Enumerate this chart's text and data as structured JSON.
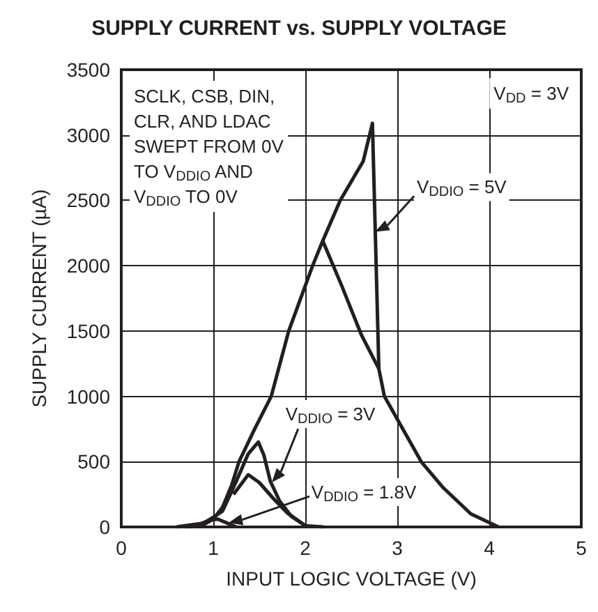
{
  "chart_data": {
    "type": "line",
    "title": "SUPPLY CURRENT vs. SUPPLY VOLTAGE",
    "xlabel": "INPUT LOGIC VOLTAGE (V)",
    "ylabel": "SUPPLY CURRENT (µA)",
    "xlim": [
      0,
      5
    ],
    "xticks": [
      0,
      1,
      2,
      3,
      4,
      5
    ],
    "ylim": [
      0,
      3500
    ],
    "yticks": [
      0,
      500,
      1000,
      1500,
      2000,
      2500,
      3000,
      3500
    ],
    "grid": true,
    "marker": "none",
    "line_style": "solid",
    "annotations": [
      "V$_{DD}$ = 3V",
      "SCLK, CSB, DIN,\nCLR, AND LDAC\nSWEPT FROM 0V\nTO V$_{DDIO}$ AND\nV$_{DDIO}$ TO 0V",
      {
        "text": "V$_{DDIO}$ = 5V",
        "x": 2.76,
        "y": 2260
      },
      "V$_{DDIO}$ = 3V",
      "V$_{DDIO}$ = 1.8V"
    ],
    "series": [
      {
        "color": "#231f20",
        "x": [
          0.7,
          0.9,
          1.0,
          1.1,
          1.2,
          1.28,
          1.45,
          1.63,
          1.82,
          2.08,
          2.19,
          2.38,
          2.63,
          2.73,
          2.8,
          2.86,
          3.26,
          3.5,
          3.8,
          4.1
        ],
        "values": [
          0,
          20,
          60,
          150,
          320,
          500,
          750,
          1000,
          1500,
          2000,
          2190,
          2500,
          2800,
          3090,
          1210,
          1000,
          500,
          300,
          100,
          0
        ]
      },
      {
        "color": "#231f20",
        "x": [
          2.19,
          2.4,
          2.61,
          2.8
        ],
        "values": [
          2190,
          1840,
          1470,
          1210
        ]
      },
      {
        "color": "#231f20",
        "x": [
          0.6,
          0.9,
          1.1,
          1.25,
          1.38,
          1.49,
          1.55,
          1.62,
          1.72,
          1.85,
          2.0,
          2.2
        ],
        "values": [
          0,
          30,
          120,
          350,
          560,
          650,
          550,
          350,
          200,
          80,
          10,
          0
        ]
      },
      {
        "color": "#231f20",
        "x": [
          1.22,
          1.38,
          1.5,
          1.65,
          1.8,
          2.0
        ],
        "values": [
          250,
          400,
          340,
          220,
          110,
          10
        ]
      },
      {
        "color": "#231f20",
        "x": [
          0.75,
          0.85,
          0.95,
          1.05,
          1.15,
          1.25
        ],
        "values": [
          0,
          20,
          50,
          60,
          30,
          0
        ]
      }
    ]
  }
}
